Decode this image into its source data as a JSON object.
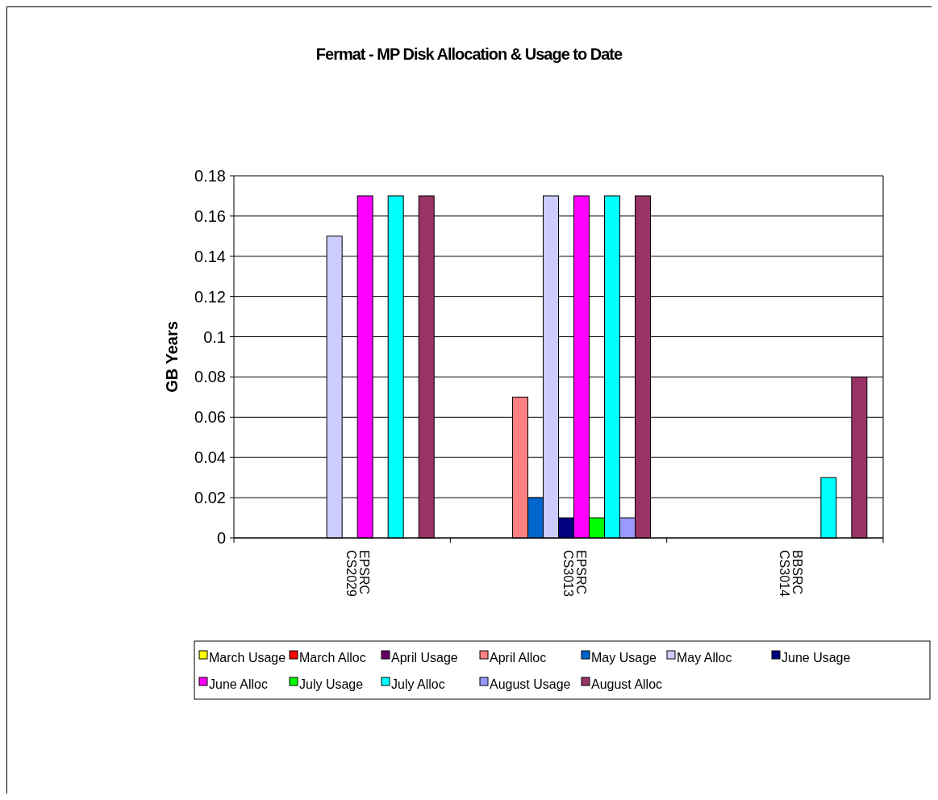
{
  "chart_data": {
    "type": "bar",
    "title": "Fermat - MP Disk Allocation & Usage to Date",
    "ylabel": "GB Years",
    "categories": [
      "EPSRC CS2029",
      "EPSRC CS3013",
      "BBSRC CS3014"
    ],
    "series": [
      {
        "name": "March Usage",
        "color": "#ffff00",
        "values": [
          null,
          null,
          null
        ]
      },
      {
        "name": "March Alloc",
        "color": "#ff0000",
        "values": [
          null,
          null,
          null
        ]
      },
      {
        "name": "April Usage",
        "color": "#660066",
        "values": [
          null,
          null,
          null
        ]
      },
      {
        "name": "April Alloc",
        "color": "#ff8080",
        "values": [
          null,
          0.07,
          null
        ]
      },
      {
        "name": "May Usage",
        "color": "#0066cc",
        "values": [
          null,
          0.02,
          null
        ]
      },
      {
        "name": "May Alloc",
        "color": "#ccccff",
        "values": [
          0.15,
          0.17,
          null
        ]
      },
      {
        "name": "June Usage",
        "color": "#000080",
        "values": [
          null,
          0.01,
          null
        ]
      },
      {
        "name": "June Alloc",
        "color": "#ff00ff",
        "values": [
          0.17,
          0.17,
          null
        ]
      },
      {
        "name": "July Usage",
        "color": "#00ff00",
        "values": [
          null,
          0.01,
          null
        ]
      },
      {
        "name": "July Alloc",
        "color": "#00ffff",
        "values": [
          0.17,
          0.17,
          0.03
        ]
      },
      {
        "name": "August Usage",
        "color": "#9999ff",
        "values": [
          null,
          0.01,
          null
        ]
      },
      {
        "name": "August Alloc",
        "color": "#993366",
        "values": [
          0.17,
          0.17,
          0.08
        ]
      }
    ],
    "ylim": [
      0,
      0.18
    ],
    "yticks": [
      0,
      0.02,
      0.04,
      0.06,
      0.08,
      0.1,
      0.12,
      0.14,
      0.16,
      0.18
    ],
    "grid": "y",
    "legend": "bottom"
  }
}
